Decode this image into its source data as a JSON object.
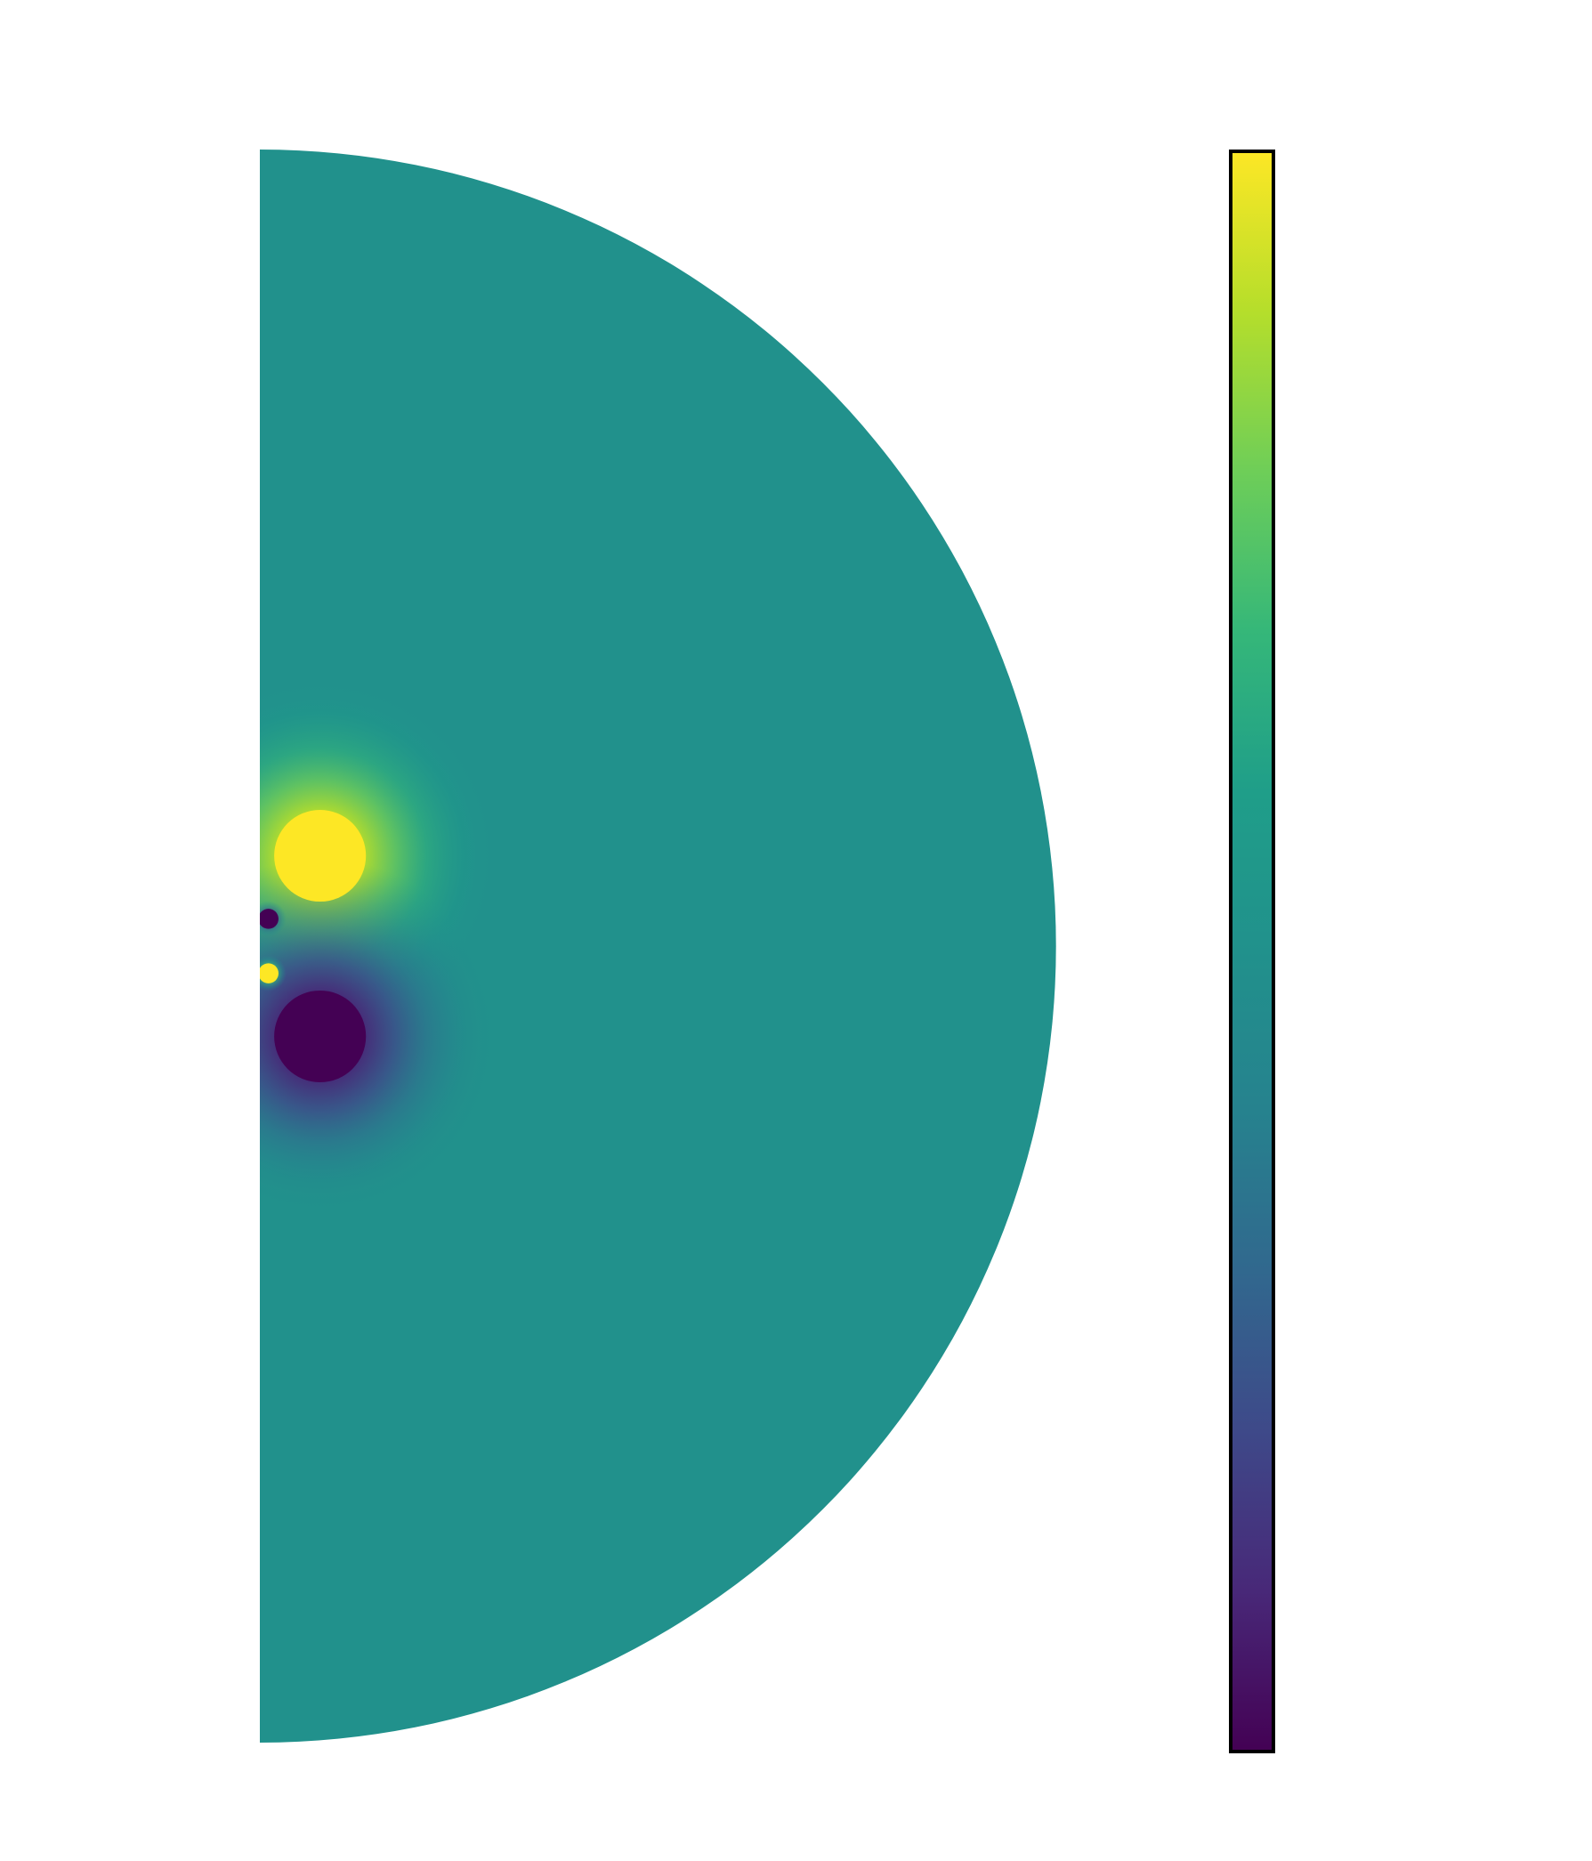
{
  "chart_data": {
    "type": "heatmap",
    "shape": "half-disk",
    "title": "",
    "xlabel": "",
    "ylabel": "",
    "axes_visible": false,
    "grid": false,
    "colormap": "viridis",
    "colormap_stops": [
      "#440154",
      "#482878",
      "#3e4989",
      "#31688e",
      "#26828e",
      "#21918c",
      "#1f9e89",
      "#35b779",
      "#6ece58",
      "#b5de2b",
      "#fde725"
    ],
    "background_color": "#21918c",
    "colorbar": {
      "orientation": "vertical",
      "placement": "right",
      "tick_labels": []
    },
    "features": [
      {
        "name": "large-positive-lobe",
        "color": "#fde725",
        "sign": "positive",
        "r": 0.042,
        "z": 0.063,
        "radius": 0.032
      },
      {
        "name": "large-negative-lobe",
        "color": "#440154",
        "sign": "negative",
        "r": 0.042,
        "z": -0.063,
        "radius": 0.032
      },
      {
        "name": "small-negative-lobe",
        "color": "#440154",
        "sign": "negative",
        "r": 0.006,
        "z": 0.019,
        "radius": 0.007
      },
      {
        "name": "small-positive-lobe",
        "color": "#fde725",
        "sign": "positive",
        "r": 0.006,
        "z": -0.019,
        "radius": 0.007
      }
    ]
  }
}
